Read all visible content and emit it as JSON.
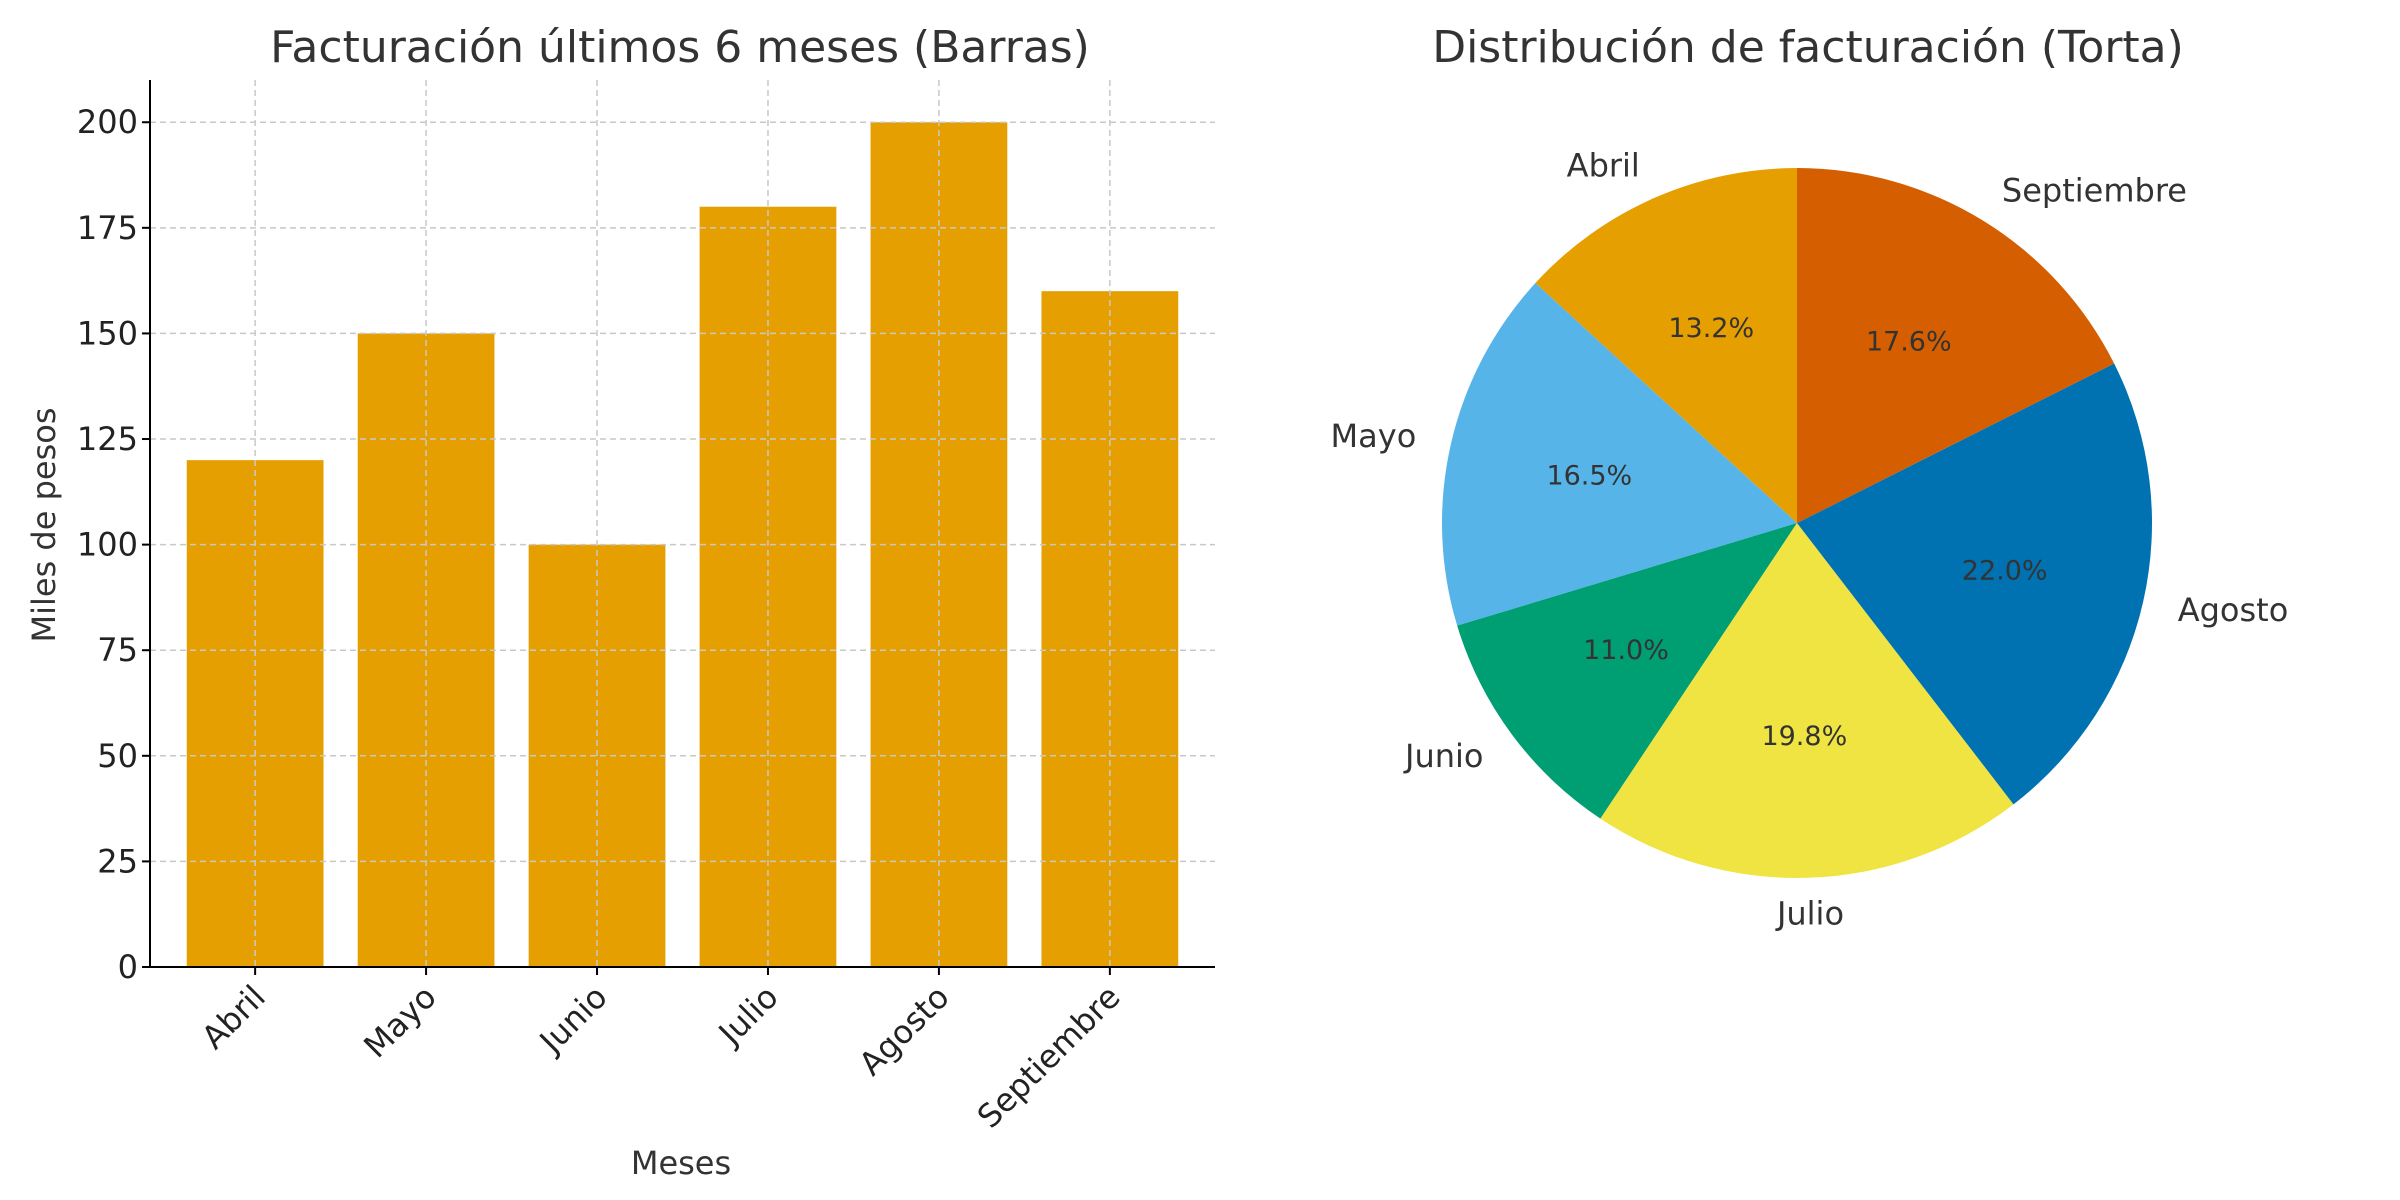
{
  "chart_data": [
    {
      "type": "bar",
      "title": "Facturación últimos 6 meses (Barras)",
      "xlabel": "Meses",
      "ylabel": "Miles de pesos",
      "categories": [
        "Abril",
        "Mayo",
        "Junio",
        "Julio",
        "Agosto",
        "Septiembre"
      ],
      "values": [
        120,
        150,
        100,
        180,
        200,
        160
      ],
      "ylim": [
        0,
        210
      ],
      "yticks": [
        0,
        25,
        50,
        75,
        100,
        125,
        150,
        175,
        200
      ],
      "grid": true,
      "grid_style": "dashed",
      "bar_color": "#E69F00"
    },
    {
      "type": "pie",
      "title": "Distribución de facturación (Torta)",
      "start": "top",
      "direction": "counterclockwise",
      "slices": [
        {
          "label": "Abril",
          "value": 120,
          "pct_label": "13.2%",
          "color": "#E69F00"
        },
        {
          "label": "Mayo",
          "value": 150,
          "pct_label": "16.5%",
          "color": "#56B4E9"
        },
        {
          "label": "Junio",
          "value": 100,
          "pct_label": "11.0%",
          "color": "#009E73"
        },
        {
          "label": "Julio",
          "value": 180,
          "pct_label": "19.8%",
          "color": "#F0E442"
        },
        {
          "label": "Agosto",
          "value": 200,
          "pct_label": "22.0%",
          "color": "#0072B2"
        },
        {
          "label": "Septiembre",
          "value": 160,
          "pct_label": "17.6%",
          "color": "#D55E00"
        }
      ]
    }
  ]
}
